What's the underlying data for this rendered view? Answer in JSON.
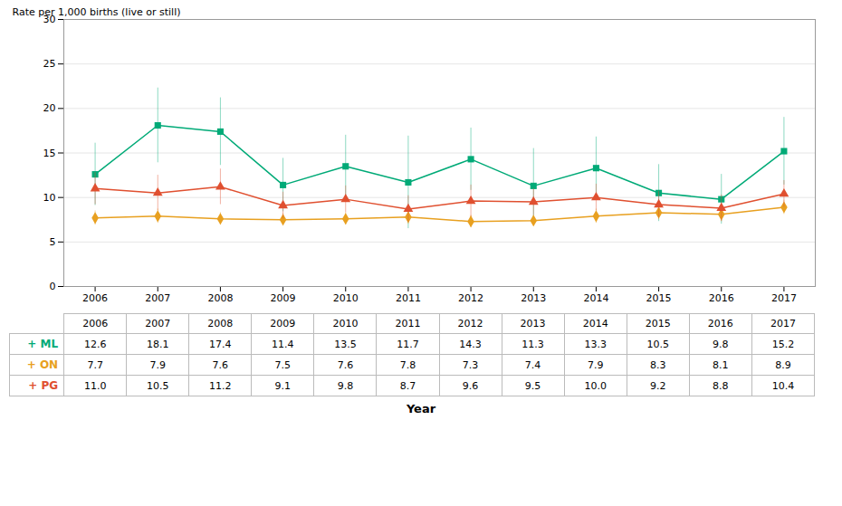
{
  "chart_data": {
    "type": "line",
    "x": [
      2006,
      2007,
      2008,
      2009,
      2010,
      2011,
      2012,
      2013,
      2014,
      2015,
      2016,
      2017
    ],
    "series": [
      {
        "name": "+ ML",
        "color": "#00aa77",
        "marker": "square",
        "values": [
          12.6,
          18.1,
          17.4,
          11.4,
          13.5,
          11.7,
          14.3,
          11.3,
          13.3,
          10.5,
          9.8,
          15.2
        ],
        "value_labels": [
          "12.6",
          "18.1",
          "17.4",
          "11.4",
          "13.5",
          "11.7",
          "14.3",
          "11.3",
          "13.3",
          "10.5",
          "9.8",
          "15.2"
        ],
        "errors": [
          3.5,
          4.2,
          3.8,
          3.0,
          3.5,
          5.2,
          3.5,
          4.2,
          3.5,
          3.2,
          2.8,
          3.8
        ]
      },
      {
        "name": "+ ON",
        "color": "#e8a020",
        "marker": "diamond",
        "values": [
          7.7,
          7.9,
          7.6,
          7.5,
          7.6,
          7.8,
          7.3,
          7.4,
          7.9,
          8.3,
          8.1,
          8.9
        ],
        "value_labels": [
          "7.7",
          "7.9",
          "7.6",
          "7.5",
          "7.6",
          "7.8",
          "7.3",
          "7.4",
          "7.9",
          "8.3",
          "8.1",
          "8.9"
        ],
        "errors": [
          0.8,
          0.8,
          0.7,
          0.7,
          0.7,
          0.8,
          0.7,
          0.6,
          0.8,
          0.8,
          0.8,
          0.8
        ]
      },
      {
        "name": "+ PG",
        "color": "#e05030",
        "marker": "triangle",
        "values": [
          11.0,
          10.5,
          11.2,
          9.1,
          9.8,
          8.7,
          9.6,
          9.5,
          10.0,
          9.2,
          8.8,
          10.4
        ],
        "value_labels": [
          "11.0",
          "10.5",
          "11.2",
          "9.1",
          "9.8",
          "8.7",
          "9.6",
          "9.5",
          "10.0",
          "9.2",
          "8.8",
          "10.4"
        ],
        "errors": [
          1.8,
          2.0,
          2.0,
          1.5,
          1.5,
          1.5,
          1.8,
          1.5,
          1.5,
          1.5,
          1.5,
          1.5
        ]
      }
    ],
    "xlabel": "Year",
    "ylabel": "Rate per 1,000 births (live or still)",
    "xlim": [
      2005.5,
      2017.5
    ],
    "xticks": [
      2006,
      2007,
      2008,
      2009,
      2010,
      2011,
      2012,
      2013,
      2014,
      2015,
      2016,
      2017
    ],
    "ylim": [
      0,
      30
    ],
    "yticks": [
      0,
      5,
      10,
      15,
      20,
      25,
      30
    ],
    "grid": true
  }
}
